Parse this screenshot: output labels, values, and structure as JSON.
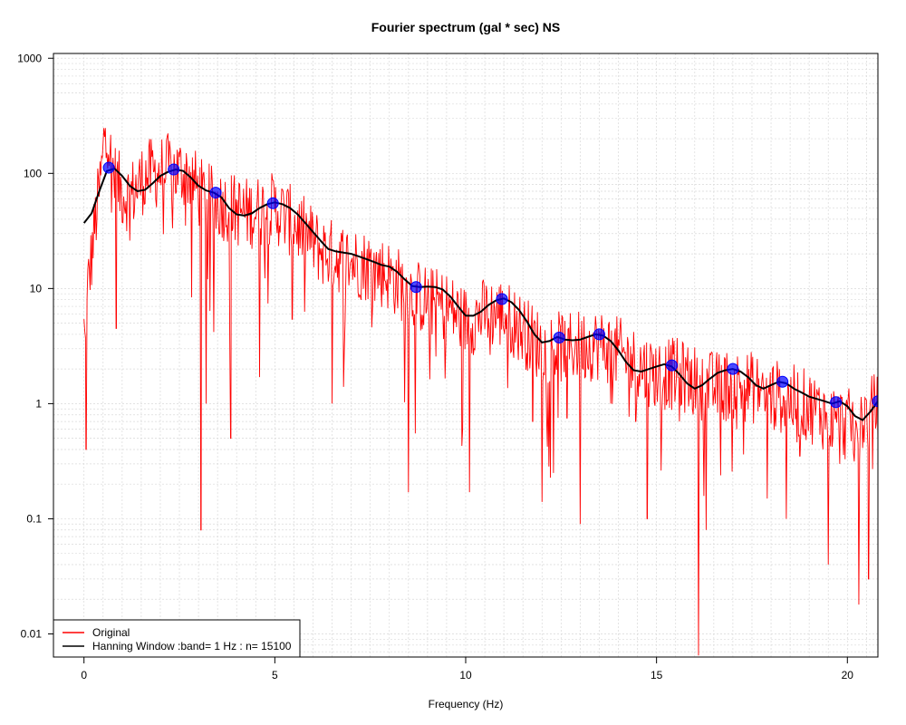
{
  "chart_data": {
    "type": "line",
    "title": "Fourier spectrum (gal * sec) NS",
    "xlabel": "Frequency (Hz)",
    "ylabel": "",
    "y_scale": "log",
    "xlim": [
      -0.8,
      20.8
    ],
    "ylim": [
      0.0063,
      1100
    ],
    "x_ticks": [
      0,
      5,
      10,
      15,
      20
    ],
    "x_tick_labels": [
      "0",
      "5",
      "10",
      "15",
      "20"
    ],
    "y_ticks": [
      0.01,
      0.1,
      1,
      10,
      100,
      1000
    ],
    "y_tick_labels": [
      "0.01",
      "0.1",
      "1",
      "10",
      "100",
      "1000"
    ],
    "grid": true,
    "legend_position": "bottom-left",
    "series": [
      {
        "name": "Original",
        "color": "#ff0000",
        "anchor_x": [
          0,
          0.05,
          0.1,
          0.2,
          0.3,
          0.4,
          0.5,
          0.55,
          0.6,
          0.65,
          0.7,
          0.8,
          0.9,
          1.0,
          1.2,
          1.4,
          1.6,
          1.8,
          2.0,
          2.2,
          2.4,
          2.6,
          2.8,
          3.0,
          3.2,
          3.4,
          3.6,
          3.8,
          4.0,
          4.3,
          4.6,
          5.0,
          5.4,
          5.8,
          6.2,
          6.6,
          7.0,
          7.5,
          8.0,
          8.5,
          9.0,
          9.5,
          10.0,
          10.5,
          11.0,
          11.5,
          12.0,
          12.5,
          13.0,
          13.5,
          14.0,
          14.5,
          15.0,
          15.5,
          16.0,
          16.5,
          17.0,
          17.5,
          18.0,
          18.5,
          19.0,
          19.5,
          20.0,
          20.5,
          20.8
        ],
        "anchor_y": [
          5,
          3,
          12,
          22,
          45,
          80,
          160,
          330,
          300,
          220,
          150,
          110,
          90,
          80,
          72,
          90,
          110,
          115,
          120,
          125,
          120,
          118,
          110,
          80,
          70,
          65,
          62,
          60,
          55,
          52,
          55,
          58,
          45,
          35,
          25,
          22,
          20,
          18,
          15,
          11,
          9,
          8,
          6,
          7,
          7,
          5,
          3.6,
          3.6,
          3.7,
          3.8,
          3.2,
          2.5,
          2.1,
          2.1,
          1.8,
          1.6,
          1.7,
          1.6,
          1.4,
          1.25,
          1.1,
          0.9,
          0.75,
          0.9,
          1.1
        ],
        "dips": [
          [
            0.05,
            0.4
          ],
          [
            0.85,
            4.5
          ],
          [
            3.07,
            0.08
          ],
          [
            3.2,
            1.0
          ],
          [
            3.85,
            0.5
          ],
          [
            4.6,
            1.7
          ],
          [
            5.45,
            5.4
          ],
          [
            6.5,
            1.0
          ],
          [
            6.8,
            1.4
          ],
          [
            8.5,
            0.17
          ],
          [
            10.1,
            0.17
          ],
          [
            11.75,
            0.7
          ],
          [
            12.0,
            0.14
          ],
          [
            12.3,
            0.25
          ],
          [
            12.65,
            0.75
          ],
          [
            13.0,
            0.09
          ],
          [
            13.8,
            1.0
          ],
          [
            14.45,
            0.7
          ],
          [
            14.75,
            0.1
          ],
          [
            15.6,
            0.7
          ],
          [
            16.1,
            0.0065
          ],
          [
            16.3,
            0.08
          ],
          [
            17.1,
            0.6
          ],
          [
            17.9,
            0.15
          ],
          [
            18.4,
            0.1
          ],
          [
            18.75,
            0.35
          ],
          [
            19.5,
            0.04
          ],
          [
            19.8,
            0.3
          ],
          [
            20.3,
            0.018
          ],
          [
            20.55,
            0.03
          ]
        ],
        "noise_amplitude_log10": 0.32,
        "sample_step_hz": 0.02
      },
      {
        "name": "Hanning Window :band= 1 Hz : n= 15100",
        "color": "#000000",
        "x": [
          0.0,
          0.2,
          0.4,
          0.6,
          0.8,
          1.0,
          1.2,
          1.4,
          1.6,
          1.8,
          2.0,
          2.2,
          2.4,
          2.6,
          2.8,
          3.0,
          3.2,
          3.4,
          3.6,
          3.8,
          4.0,
          4.2,
          4.4,
          4.6,
          4.8,
          5.0,
          5.2,
          5.4,
          5.6,
          5.8,
          6.0,
          6.2,
          6.4,
          6.6,
          6.8,
          7.0,
          7.2,
          7.4,
          7.6,
          7.8,
          8.0,
          8.2,
          8.4,
          8.6,
          8.8,
          9.0,
          9.2,
          9.4,
          9.6,
          9.8,
          10.0,
          10.2,
          10.4,
          10.6,
          10.8,
          11.0,
          11.2,
          11.4,
          11.6,
          11.8,
          12.0,
          12.2,
          12.4,
          12.6,
          12.8,
          13.0,
          13.2,
          13.4,
          13.6,
          13.8,
          14.0,
          14.2,
          14.4,
          14.6,
          14.8,
          15.0,
          15.2,
          15.4,
          15.6,
          15.8,
          16.0,
          16.2,
          16.4,
          16.6,
          16.8,
          17.0,
          17.2,
          17.4,
          17.6,
          17.8,
          18.0,
          18.2,
          18.4,
          18.6,
          18.8,
          19.0,
          19.2,
          19.4,
          19.6,
          19.8,
          20.0,
          20.2,
          20.4,
          20.6,
          20.8
        ],
        "values": [
          37,
          45,
          70,
          105,
          110,
          95,
          78,
          70,
          72,
          82,
          95,
          103,
          108,
          105,
          92,
          78,
          71,
          68,
          62,
          50,
          44,
          43,
          45,
          50,
          54,
          56,
          54,
          50,
          44,
          37,
          31,
          26,
          22,
          21,
          20.5,
          20,
          19,
          18,
          17,
          16,
          15.5,
          14,
          12,
          10.5,
          10.3,
          10.4,
          10.3,
          9.8,
          8.5,
          7,
          5.8,
          5.8,
          6.3,
          7.2,
          7.9,
          8.2,
          7.6,
          6.5,
          5.2,
          4,
          3.4,
          3.5,
          3.8,
          3.6,
          3.55,
          3.6,
          3.8,
          4,
          3.9,
          3.5,
          2.9,
          2.3,
          1.95,
          1.9,
          2.0,
          2.1,
          2.2,
          2.1,
          1.8,
          1.5,
          1.35,
          1.45,
          1.65,
          1.85,
          1.95,
          2.0,
          1.9,
          1.7,
          1.45,
          1.35,
          1.45,
          1.55,
          1.5,
          1.35,
          1.25,
          1.15,
          1.1,
          1.05,
          1.0,
          1.05,
          0.95,
          0.78,
          0.72,
          0.85,
          1.05
        ]
      },
      {
        "name": "",
        "color": "#0000ff",
        "marker": "circle",
        "x": [
          0.65,
          2.35,
          3.45,
          4.95,
          8.7,
          10.95,
          12.45,
          13.5,
          15.4,
          17.0,
          18.3,
          19.7,
          20.8
        ],
        "values": [
          112,
          108,
          68,
          55,
          10.3,
          8.1,
          3.75,
          4.0,
          2.15,
          2.0,
          1.55,
          1.03,
          1.05
        ]
      }
    ],
    "legend": {
      "entries": [
        "Original",
        "Hanning Window :band= 1 Hz : n= 15100"
      ],
      "colors": [
        "#ff0000",
        "#000000"
      ]
    }
  }
}
